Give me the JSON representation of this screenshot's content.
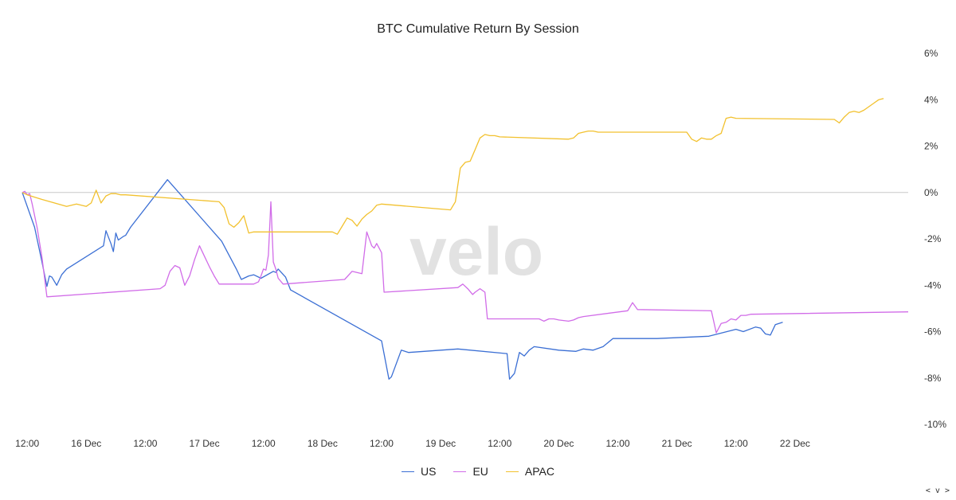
{
  "chart_data": {
    "type": "line",
    "title": "BTC Cumulative Return By Session",
    "watermark": "velo",
    "x_ticks": [
      "12:00",
      "16 Dec",
      "12:00",
      "17 Dec",
      "12:00",
      "18 Dec",
      "12:00",
      "19 Dec",
      "12:00",
      "20 Dec",
      "12:00",
      "21 Dec",
      "12:00",
      "22 Dec"
    ],
    "x_tick_times": [
      "2024-12-15 12:00",
      "2024-12-16 00:00",
      "2024-12-16 12:00",
      "2024-12-17 00:00",
      "2024-12-17 12:00",
      "2024-12-18 00:00",
      "2024-12-18 12:00",
      "2024-12-19 00:00",
      "2024-12-19 12:00",
      "2024-12-20 00:00",
      "2024-12-20 12:00",
      "2024-12-21 00:00",
      "2024-12-21 12:00",
      "2024-12-22 00:00"
    ],
    "y_ticks": [
      6,
      4,
      2,
      0,
      -2,
      -4,
      -6,
      -8,
      -10
    ],
    "y_tick_labels": [
      "6%",
      "4%",
      "2%",
      "0%",
      "-2%",
      "-4%",
      "-6%",
      "-8%",
      "-10%"
    ],
    "ylim": [
      -10,
      6
    ],
    "xlim": [
      "2024-12-15 11:00",
      "2024-12-22 23:00"
    ],
    "y_axis_position": "right",
    "zero_line": true,
    "legend_position": "bottom",
    "series": [
      {
        "name": "US",
        "color": "#3b6fd4",
        "x": [
          "2024-12-15 11:00",
          "2024-12-15 13:30",
          "2024-12-15 15:00",
          "2024-12-15 16:00",
          "2024-12-15 16:30",
          "2024-12-15 17:00",
          "2024-12-15 18:00",
          "2024-12-15 19:00",
          "2024-12-15 20:00",
          "2024-12-16 03:30",
          "2024-12-16 04:00",
          "2024-12-16 05:00",
          "2024-12-16 05:30",
          "2024-12-16 06:00",
          "2024-12-16 06:30",
          "2024-12-16 07:30",
          "2024-12-16 08:00",
          "2024-12-16 09:00",
          "2024-12-16 16:30",
          "2024-12-17 03:30",
          "2024-12-17 06:30",
          "2024-12-17 07:30",
          "2024-12-17 09:00",
          "2024-12-17 10:00",
          "2024-12-17 11:30",
          "2024-12-17 14:00",
          "2024-12-17 14:30",
          "2024-12-17 15:00",
          "2024-12-17 16:30",
          "2024-12-17 17:30",
          "2024-12-18 12:00",
          "2024-12-18 13:30",
          "2024-12-18 14:00",
          "2024-12-18 16:00",
          "2024-12-18 17:30",
          "2024-12-19 03:30",
          "2024-12-19 13:30",
          "2024-12-19 14:00",
          "2024-12-19 15:00",
          "2024-12-19 16:00",
          "2024-12-19 17:00",
          "2024-12-19 18:00",
          "2024-12-19 19:00",
          "2024-12-20 00:00",
          "2024-12-20 03:30",
          "2024-12-20 05:00",
          "2024-12-20 07:00",
          "2024-12-20 09:00",
          "2024-12-20 11:00",
          "2024-12-20 13:00",
          "2024-12-20 20:00",
          "2024-12-21 06:30",
          "2024-12-21 12:00",
          "2024-12-21 13:30",
          "2024-12-21 16:00",
          "2024-12-21 17:00",
          "2024-12-21 18:00",
          "2024-12-21 19:00",
          "2024-12-21 20:00",
          "2024-12-21 21:30"
        ],
        "y": [
          0,
          -1.5,
          -3.0,
          -4.05,
          -3.6,
          -3.65,
          -4.0,
          -3.55,
          -3.3,
          -2.3,
          -1.65,
          -2.2,
          -2.55,
          -1.75,
          -2.05,
          -1.9,
          -1.85,
          -1.5,
          0.55,
          -2.1,
          -3.3,
          -3.75,
          -3.6,
          -3.55,
          -3.7,
          -3.4,
          -3.45,
          -3.3,
          -3.65,
          -4.2,
          -6.4,
          -8.05,
          -7.95,
          -6.8,
          -6.9,
          -6.75,
          -6.95,
          -8.05,
          -7.8,
          -6.9,
          -7.05,
          -6.8,
          -6.65,
          -6.8,
          -6.85,
          -6.75,
          -6.8,
          -6.65,
          -6.3,
          -6.3,
          -6.3,
          -6.2,
          -5.9,
          -6.0,
          -5.8,
          -5.85,
          -6.1,
          -6.15,
          -5.7,
          -5.6
        ]
      },
      {
        "name": "EU",
        "color": "#d16ce8",
        "x": [
          "2024-12-15 11:00",
          "2024-12-15 11:30",
          "2024-12-15 12:00",
          "2024-12-15 12:30",
          "2024-12-15 13:00",
          "2024-12-15 14:00",
          "2024-12-15 15:00",
          "2024-12-15 16:00",
          "2024-12-16 15:00",
          "2024-12-16 16:00",
          "2024-12-16 17:00",
          "2024-12-16 18:00",
          "2024-12-16 19:00",
          "2024-12-16 20:00",
          "2024-12-16 21:00",
          "2024-12-16 22:00",
          "2024-12-16 23:00",
          "2024-12-17 01:00",
          "2024-12-17 02:00",
          "2024-12-17 03:00",
          "2024-12-17 10:00",
          "2024-12-17 11:00",
          "2024-12-17 11:30",
          "2024-12-17 12:00",
          "2024-12-17 12:30",
          "2024-12-17 13:00",
          "2024-12-17 13:30",
          "2024-12-17 14:00",
          "2024-12-17 14:30",
          "2024-12-17 15:00",
          "2024-12-17 16:00",
          "2024-12-18 04:30",
          "2024-12-18 06:00",
          "2024-12-18 07:00",
          "2024-12-18 08:00",
          "2024-12-18 09:00",
          "2024-12-18 10:00",
          "2024-12-18 10:30",
          "2024-12-18 11:00",
          "2024-12-18 11:30",
          "2024-12-18 12:00",
          "2024-12-18 12:30",
          "2024-12-19 03:30",
          "2024-12-19 04:30",
          "2024-12-19 05:30",
          "2024-12-19 06:30",
          "2024-12-19 07:00",
          "2024-12-19 08:00",
          "2024-12-19 09:00",
          "2024-12-19 09:30",
          "2024-12-19 20:00",
          "2024-12-19 21:00",
          "2024-12-19 22:00",
          "2024-12-19 23:00",
          "2024-12-20 00:00",
          "2024-12-20 02:00",
          "2024-12-20 03:00",
          "2024-12-20 04:00",
          "2024-12-20 05:00",
          "2024-12-20 14:00",
          "2024-12-20 15:00",
          "2024-12-20 16:00",
          "2024-12-21 07:00",
          "2024-12-21 08:00",
          "2024-12-21 09:00",
          "2024-12-21 10:00",
          "2024-12-21 11:00",
          "2024-12-21 12:00",
          "2024-12-21 13:00",
          "2024-12-21 14:00",
          "2024-12-21 15:00",
          "2024-12-22 23:00"
        ],
        "y": [
          0,
          0.05,
          -0.1,
          -0.05,
          -0.5,
          -1.5,
          -2.8,
          -4.5,
          -4.15,
          -4.0,
          -3.4,
          -3.15,
          -3.25,
          -4.0,
          -3.6,
          -2.9,
          -2.3,
          -3.2,
          -3.6,
          -3.95,
          -3.95,
          -3.85,
          -3.6,
          -3.3,
          -3.35,
          -2.7,
          -0.4,
          -3.0,
          -3.3,
          -3.7,
          -3.95,
          -3.75,
          -3.4,
          -3.45,
          -3.5,
          -1.7,
          -2.3,
          -2.4,
          -2.2,
          -2.4,
          -2.6,
          -4.3,
          -4.1,
          -3.95,
          -4.15,
          -4.4,
          -4.3,
          -4.15,
          -4.3,
          -5.45,
          -5.45,
          -5.55,
          -5.45,
          -5.45,
          -5.5,
          -5.55,
          -5.5,
          -5.4,
          -5.35,
          -5.1,
          -4.75,
          -5.05,
          -5.1,
          -6.05,
          -5.65,
          -5.6,
          -5.45,
          -5.5,
          -5.3,
          -5.3,
          -5.25,
          -5.15
        ]
      },
      {
        "name": "APAC",
        "color": "#f2c12e",
        "x": [
          "2024-12-15 11:00",
          "2024-12-15 12:00",
          "2024-12-15 15:00",
          "2024-12-15 20:00",
          "2024-12-15 22:00",
          "2024-12-16 00:00",
          "2024-12-16 01:00",
          "2024-12-16 02:00",
          "2024-12-16 03:00",
          "2024-12-16 04:00",
          "2024-12-16 05:00",
          "2024-12-16 06:00",
          "2024-12-16 07:00",
          "2024-12-16 08:00",
          "2024-12-17 03:00",
          "2024-12-17 04:00",
          "2024-12-17 05:00",
          "2024-12-17 06:00",
          "2024-12-17 07:00",
          "2024-12-17 08:00",
          "2024-12-17 09:00",
          "2024-12-17 10:00",
          "2024-12-18 02:00",
          "2024-12-18 03:00",
          "2024-12-18 04:00",
          "2024-12-18 05:00",
          "2024-12-18 06:00",
          "2024-12-18 07:00",
          "2024-12-18 08:00",
          "2024-12-18 09:00",
          "2024-12-18 10:00",
          "2024-12-18 11:00",
          "2024-12-18 12:00",
          "2024-12-19 02:00",
          "2024-12-19 03:00",
          "2024-12-19 04:00",
          "2024-12-19 05:00",
          "2024-12-19 06:00",
          "2024-12-19 07:00",
          "2024-12-19 08:00",
          "2024-12-19 09:00",
          "2024-12-19 10:00",
          "2024-12-19 11:00",
          "2024-12-19 12:00",
          "2024-12-20 02:00",
          "2024-12-20 03:00",
          "2024-12-20 04:00",
          "2024-12-20 05:00",
          "2024-12-20 06:00",
          "2024-12-20 07:00",
          "2024-12-20 08:00",
          "2024-12-20 09:00",
          "2024-12-21 02:00",
          "2024-12-21 03:00",
          "2024-12-21 04:00",
          "2024-12-21 05:00",
          "2024-12-21 06:00",
          "2024-12-21 07:00",
          "2024-12-21 08:00",
          "2024-12-21 09:00",
          "2024-12-21 10:00",
          "2024-12-21 11:00",
          "2024-12-21 12:00",
          "2024-12-22 08:00",
          "2024-12-22 09:00",
          "2024-12-22 10:00",
          "2024-12-22 11:00",
          "2024-12-22 12:00",
          "2024-12-22 13:00",
          "2024-12-22 14:00",
          "2024-12-22 15:00",
          "2024-12-22 16:00",
          "2024-12-22 17:00",
          "2024-12-22 18:00"
        ],
        "y": [
          0,
          -0.1,
          -0.3,
          -0.6,
          -0.5,
          -0.6,
          -0.45,
          0.1,
          -0.45,
          -0.15,
          -0.05,
          -0.05,
          -0.1,
          -0.1,
          -0.4,
          -0.65,
          -1.35,
          -1.5,
          -1.3,
          -1.0,
          -1.75,
          -1.7,
          -1.7,
          -1.8,
          -1.45,
          -1.1,
          -1.2,
          -1.45,
          -1.15,
          -0.95,
          -0.8,
          -0.55,
          -0.5,
          -0.75,
          -0.4,
          1.05,
          1.3,
          1.35,
          1.85,
          2.35,
          2.5,
          2.45,
          2.45,
          2.4,
          2.3,
          2.35,
          2.55,
          2.6,
          2.65,
          2.65,
          2.6,
          2.6,
          2.6,
          2.3,
          2.2,
          2.35,
          2.3,
          2.3,
          2.45,
          2.55,
          3.2,
          3.25,
          3.2,
          3.15,
          3.0,
          3.25,
          3.45,
          3.5,
          3.45,
          3.55,
          3.7,
          3.85,
          4.0,
          4.05
        ]
      }
    ]
  },
  "corner_nav": "< v >"
}
